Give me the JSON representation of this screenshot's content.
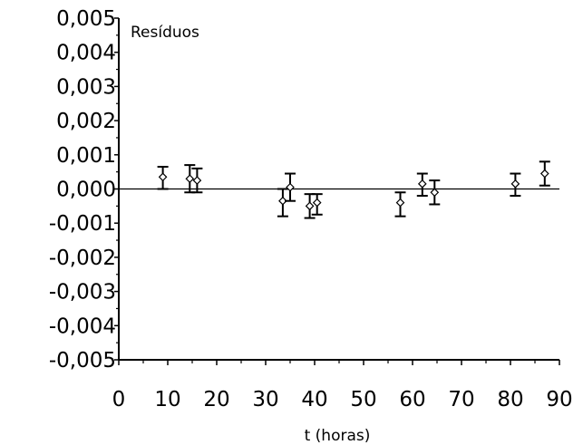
{
  "chart_data": {
    "type": "scatter",
    "title": "Resíduos",
    "xlabel": "t (horas)",
    "ylabel": "",
    "xlim": [
      0,
      90
    ],
    "ylim": [
      -0.005,
      0.005
    ],
    "x_ticks": [
      "0",
      "10",
      "20",
      "30",
      "40",
      "50",
      "60",
      "70",
      "80",
      "90"
    ],
    "y_ticks": [
      "0,005",
      "0,004",
      "0,003",
      "0,002",
      "0,001",
      "0,000",
      "-0,001",
      "-0,002",
      "-0,003",
      "-0,004",
      "-0,005"
    ],
    "grid": false,
    "zero_line": true,
    "marker": "open-diamond",
    "points": [
      {
        "x": 9.0,
        "y": 0.00035,
        "err_low": 0.00035,
        "err_high": 0.0003
      },
      {
        "x": 14.5,
        "y": 0.0003,
        "err_low": 0.0004,
        "err_high": 0.0004
      },
      {
        "x": 16.0,
        "y": 0.00025,
        "err_low": 0.00035,
        "err_high": 0.00035
      },
      {
        "x": 33.5,
        "y": -0.00035,
        "err_low": 0.00045,
        "err_high": 0.00035
      },
      {
        "x": 35.0,
        "y": 5e-05,
        "err_low": 0.0004,
        "err_high": 0.0004
      },
      {
        "x": 39.0,
        "y": -0.0005,
        "err_low": 0.00035,
        "err_high": 0.00035
      },
      {
        "x": 40.5,
        "y": -0.0004,
        "err_low": 0.00035,
        "err_high": 0.00025
      },
      {
        "x": 57.5,
        "y": -0.0004,
        "err_low": 0.0004,
        "err_high": 0.0003
      },
      {
        "x": 62.0,
        "y": 0.00015,
        "err_low": 0.00035,
        "err_high": 0.0003
      },
      {
        "x": 64.5,
        "y": -0.0001,
        "err_low": 0.00035,
        "err_high": 0.00035
      },
      {
        "x": 81.0,
        "y": 0.00015,
        "err_low": 0.00035,
        "err_high": 0.0003
      },
      {
        "x": 87.0,
        "y": 0.00045,
        "err_low": 0.00035,
        "err_high": 0.00035
      }
    ]
  }
}
